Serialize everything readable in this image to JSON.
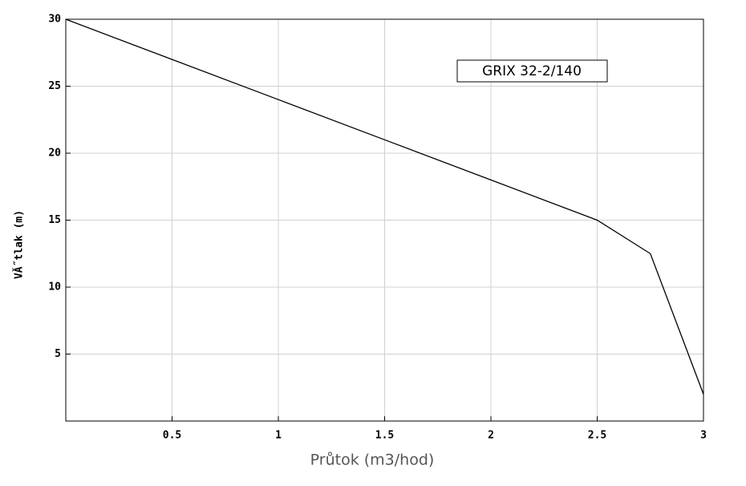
{
  "chart_data": {
    "type": "line",
    "annotation": "GRIX 32-2/140",
    "x_label": "Průtok (m3/hod)",
    "y_label": "VĂ˝tlak (m)",
    "x": [
      0,
      0.5,
      1,
      1.5,
      2,
      2.5,
      2.75,
      3
    ],
    "series": [
      {
        "color": "#000000",
        "values": [
          30,
          27,
          24,
          21,
          18,
          15,
          12.5,
          2
        ]
      }
    ],
    "xlim": [
      0,
      3
    ],
    "xticks": [
      0.5,
      1,
      1.5,
      2,
      2.5,
      3
    ],
    "ylim": [
      0,
      30
    ],
    "yticks": [
      5,
      10,
      15,
      20,
      25,
      30
    ],
    "grid": true
  }
}
